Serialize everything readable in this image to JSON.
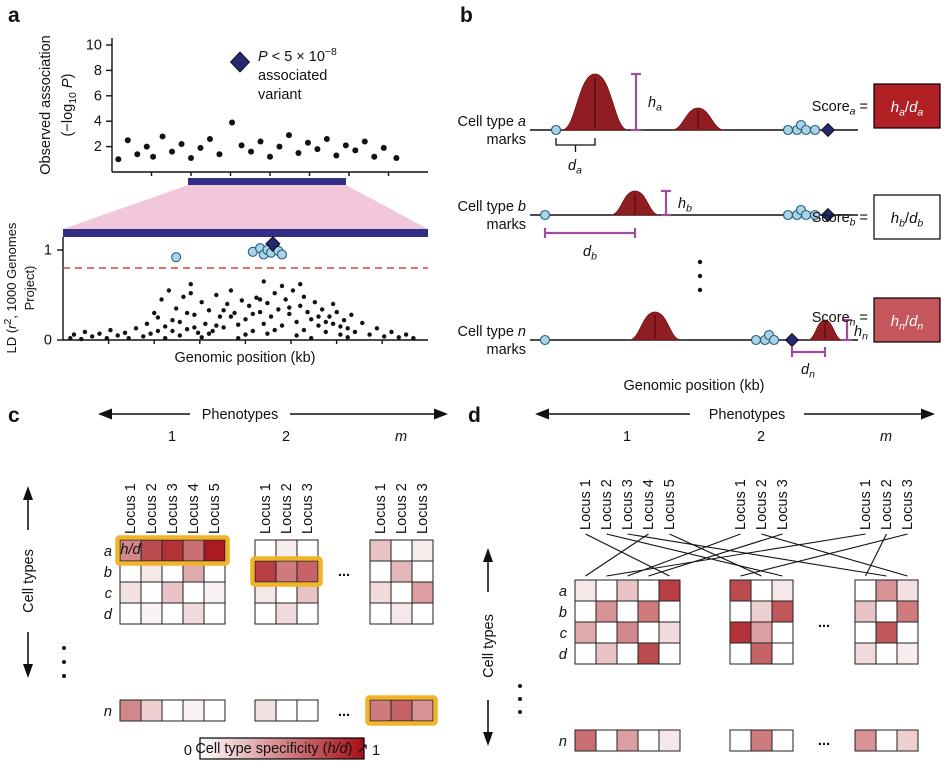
{
  "panels": {
    "a": {
      "label": "a",
      "ylabel1": "Observed association",
      "ylabel2": {
        "pre": "(−log",
        "sub": "10",
        "p": " P",
        "close": ")"
      },
      "legend": {
        "p": "P",
        "mid": " < 5 × 10",
        "exp": "−8",
        "line2": "associated",
        "line3": "variant"
      },
      "ld_ylabel": {
        "pre": "LD (",
        "r": "r",
        "exp": "2",
        "rest": ", 1000 Genomes",
        "line2": "Project)"
      },
      "xlabel": "Genomic position (kb)"
    },
    "b": {
      "label": "b",
      "row_prefix": "Cell type",
      "marks_label": "marks",
      "rows": [
        {
          "letter": "a",
          "label": " a"
        },
        {
          "letter": "b",
          "label": " b"
        },
        {
          "letter": "n",
          "label": " n"
        }
      ],
      "score_word": "Score",
      "eq": " = ",
      "h": "h",
      "d": "d",
      "slash": "/",
      "xlabel": "Genomic position (kb)"
    },
    "c": {
      "label": "c",
      "phenotypes": "Phenotypes",
      "cell_types": "Cell types",
      "group_labels": [
        "1",
        "2",
        "m"
      ],
      "row_labels": [
        "a",
        "b",
        "c",
        "d"
      ],
      "n_label": "n",
      "hd_cell": "h/d",
      "ellipsis": "...",
      "legend_min": "0",
      "legend_max": "1",
      "legend_text": "Cell type specificity (",
      "legend_hd": "h/d",
      "legend_close": ") ",
      "legend_arrow": "↗"
    },
    "d": {
      "label": "d",
      "phenotypes": "Phenotypes",
      "cell_types": "Cell types",
      "group_labels": [
        "1",
        "2",
        "m"
      ],
      "row_labels": [
        "a",
        "b",
        "c",
        "d"
      ],
      "n_label": "n",
      "ellipsis": "..."
    }
  },
  "colors": {
    "navy_bar": "#312e85",
    "diamond_navy": "#28286e",
    "pink_zoom": "#f3c7da",
    "dashed_red": "#e0403a",
    "peak_red": "#8f1d22",
    "high_ld_blue": "#a9d4e8",
    "purple_bracket": "#9c4f9e",
    "yellow_highlight": "#f0b429",
    "score_a_bg": "#b02025",
    "score_b_bg": "#ffffff",
    "score_n_bg": "#c4565c",
    "heat_min": "#ffffff",
    "heat_max": "#a50f15"
  },
  "chart_data": [
    {
      "id": "observed-association",
      "type": "scatter",
      "ylabel": "Observed association (−log10 P)",
      "ylim": [
        0,
        10
      ],
      "yticks": [
        2,
        4,
        6,
        8,
        10
      ],
      "legend": "P < 5 × 10−8 associated variant",
      "points": [
        [
          2,
          1.0
        ],
        [
          5,
          2.5
        ],
        [
          8,
          1.4
        ],
        [
          11,
          2.0
        ],
        [
          13,
          1.2
        ],
        [
          16,
          2.8
        ],
        [
          19,
          1.6
        ],
        [
          22,
          2.2
        ],
        [
          25,
          1.1
        ],
        [
          28,
          1.9
        ],
        [
          31,
          2.6
        ],
        [
          34,
          1.4
        ],
        [
          38,
          3.9
        ],
        [
          41,
          2.1
        ],
        [
          44,
          1.6
        ],
        [
          47,
          2.4
        ],
        [
          50,
          1.2
        ],
        [
          53,
          2.0
        ],
        [
          56,
          2.9
        ],
        [
          59,
          1.5
        ],
        [
          62,
          2.3
        ],
        [
          65,
          1.8
        ],
        [
          68,
          2.6
        ],
        [
          71,
          1.3
        ],
        [
          74,
          2.1
        ],
        [
          77,
          1.7
        ],
        [
          80,
          2.4
        ],
        [
          83,
          1.2
        ],
        [
          86,
          1.9
        ],
        [
          90,
          1.1
        ]
      ]
    },
    {
      "id": "ld-zoom-plot",
      "type": "scatter",
      "xlabel": "Genomic position (kb)",
      "ylabel": "LD (r2, 1000 Genomes Project)",
      "ylim": [
        0,
        1.1
      ],
      "yticks": [
        0,
        1
      ],
      "threshold": 0.8,
      "points_black": [
        [
          2,
          0.02
        ],
        [
          3,
          0.06
        ],
        [
          5,
          0.01
        ],
        [
          6,
          0.09
        ],
        [
          8,
          0.04
        ],
        [
          10,
          0.07
        ],
        [
          12,
          0.02
        ],
        [
          13,
          0.11
        ],
        [
          15,
          0.05
        ],
        [
          17,
          0.08
        ],
        [
          18,
          0.02
        ],
        [
          20,
          0.13
        ],
        [
          22,
          0.04
        ],
        [
          23,
          0.18
        ],
        [
          24,
          0.07
        ],
        [
          25,
          0.3
        ],
        [
          26,
          0.1
        ],
        [
          27,
          0.45
        ],
        [
          28,
          0.15
        ],
        [
          29,
          0.55
        ],
        [
          30,
          0.22
        ],
        [
          31,
          0.35
        ],
        [
          32,
          0.05
        ],
        [
          33,
          0.48
        ],
        [
          34,
          0.12
        ],
        [
          35,
          0.52
        ],
        [
          35,
          0.62
        ],
        [
          36,
          0.28
        ],
        [
          37,
          0.08
        ],
        [
          38,
          0.42
        ],
        [
          39,
          0.18
        ],
        [
          40,
          0.33
        ],
        [
          41,
          0.1
        ],
        [
          42,
          0.5
        ],
        [
          43,
          0.26
        ],
        [
          44,
          0.14
        ],
        [
          45,
          0.4
        ],
        [
          46,
          0.55
        ],
        [
          47,
          0.3
        ],
        [
          48,
          0.17
        ],
        [
          49,
          0.44
        ],
        [
          50,
          0.23
        ],
        [
          51,
          0.38
        ],
        [
          52,
          0.1
        ],
        [
          53,
          0.47
        ],
        [
          54,
          0.31
        ],
        [
          55,
          0.65
        ],
        [
          55,
          0.18
        ],
        [
          56,
          0.41
        ],
        [
          57,
          0.26
        ],
        [
          58,
          0.52
        ],
        [
          59,
          0.34
        ],
        [
          60,
          0.6
        ],
        [
          60,
          0.16
        ],
        [
          61,
          0.45
        ],
        [
          62,
          0.29
        ],
        [
          63,
          0.55
        ],
        [
          64,
          0.2
        ],
        [
          65,
          0.62
        ],
        [
          65,
          0.38
        ],
        [
          66,
          0.11
        ],
        [
          67,
          0.31
        ],
        [
          68,
          0.23
        ],
        [
          69,
          0.42
        ],
        [
          70,
          0.16
        ],
        [
          71,
          0.34
        ],
        [
          72,
          0.09
        ],
        [
          73,
          0.26
        ],
        [
          74,
          0.18
        ],
        [
          75,
          0.31
        ],
        [
          76,
          0.06
        ],
        [
          77,
          0.22
        ],
        [
          78,
          0.13
        ],
        [
          79,
          0.28
        ],
        [
          80,
          0.09
        ],
        [
          82,
          0.19
        ],
        [
          84,
          0.06
        ],
        [
          86,
          0.13
        ],
        [
          88,
          0.04
        ],
        [
          90,
          0.09
        ],
        [
          92,
          0.03
        ],
        [
          94,
          0.06
        ],
        [
          96,
          0.02
        ],
        [
          30,
          0.1
        ],
        [
          34,
          0.3
        ],
        [
          38,
          0.03
        ],
        [
          42,
          0.16
        ],
        [
          46,
          0.26
        ],
        [
          50,
          0.06
        ],
        [
          54,
          0.45
        ],
        [
          58,
          0.11
        ],
        [
          62,
          0.36
        ],
        [
          66,
          0.48
        ],
        [
          70,
          0.26
        ],
        [
          74,
          0.4
        ],
        [
          78,
          0.03
        ],
        [
          26,
          0.25
        ],
        [
          28,
          0.02
        ],
        [
          32,
          0.2
        ],
        [
          36,
          0.14
        ],
        [
          40,
          0.07
        ],
        [
          44,
          0.33
        ],
        [
          48,
          0.02
        ],
        [
          52,
          0.29
        ],
        [
          56,
          0.07
        ],
        [
          64,
          0.05
        ],
        [
          68,
          0.02
        ],
        [
          72,
          0.2
        ],
        [
          76,
          0.15
        ]
      ],
      "points_high_ld": [
        [
          31,
          0.92
        ],
        [
          52,
          0.98
        ],
        [
          54,
          1.02
        ],
        [
          55,
          0.95
        ],
        [
          56,
          1.0
        ],
        [
          57,
          0.97
        ],
        [
          58,
          1.03
        ],
        [
          59,
          0.99
        ],
        [
          60,
          0.95
        ]
      ],
      "lead_variant": [
        57.5,
        1.07
      ]
    },
    {
      "id": "cell-type-specificity-matrix",
      "type": "heatmap",
      "colorscale": {
        "min": 0,
        "max": 1,
        "label": "Cell type specificity (h/d)"
      },
      "row_labels": [
        "a",
        "b",
        "c",
        "d"
      ],
      "extra_row_label": "n",
      "groups": [
        {
          "phenotype": "1",
          "col_labels": [
            "Locus 1",
            "Locus 2",
            "Locus 3",
            "Locus 4",
            "Locus 5"
          ],
          "rows": [
            [
              0.5,
              0.75,
              0.85,
              0.6,
              0.95
            ],
            [
              0,
              0.1,
              0,
              0.35,
              0
            ],
            [
              0.12,
              0,
              0.25,
              0,
              0.05
            ],
            [
              0,
              0.05,
              0,
              0.15,
              0
            ]
          ],
          "n_row": [
            0.5,
            0.2,
            0,
            0.05,
            0
          ]
        },
        {
          "phenotype": "2",
          "col_labels": [
            "Locus 1",
            "Locus 2",
            "Locus 3"
          ],
          "rows": [
            [
              0,
              0.08,
              0
            ],
            [
              0.8,
              0.55,
              0.65
            ],
            [
              0.1,
              0,
              0.25
            ],
            [
              0,
              0.15,
              0
            ]
          ],
          "n_row": [
            0.12,
            0,
            0
          ]
        },
        {
          "phenotype": "m",
          "col_labels": [
            "Locus 1",
            "Locus 2",
            "Locus 3"
          ],
          "rows": [
            [
              0.25,
              0,
              0.08
            ],
            [
              0,
              0.3,
              0
            ],
            [
              0.15,
              0,
              0.4
            ],
            [
              0,
              0.1,
              0
            ]
          ],
          "n_row": [
            0.55,
            0.65,
            0.45
          ]
        }
      ],
      "highlights": [
        {
          "group": 0,
          "row": 0
        },
        {
          "group": 1,
          "row": 1
        },
        {
          "group": 2,
          "row": "n"
        }
      ],
      "annotated_cell": {
        "group": 0,
        "row": 0,
        "col": 0,
        "label": "h/d"
      }
    },
    {
      "id": "shuffled-loci-matrix",
      "type": "heatmap",
      "colorscale": {
        "min": 0,
        "max": 1,
        "label": "Cell type specificity (h/d)"
      },
      "row_labels": [
        "a",
        "b",
        "c",
        "d"
      ],
      "extra_row_label": "n",
      "groups": [
        {
          "phenotype": "1",
          "col_labels": [
            "Locus 1",
            "Locus 2",
            "Locus 3",
            "Locus 4",
            "Locus 5"
          ],
          "rows": [
            [
              0.1,
              0,
              0.25,
              0,
              0.8
            ],
            [
              0,
              0.45,
              0,
              0.55,
              0
            ],
            [
              0.35,
              0,
              0.5,
              0,
              0.15
            ],
            [
              0,
              0.25,
              0,
              0.75,
              0
            ]
          ],
          "n_row": [
            0.6,
            0,
            0.4,
            0,
            0.1
          ]
        },
        {
          "phenotype": "2",
          "col_labels": [
            "Locus 1",
            "Locus 2",
            "Locus 3"
          ],
          "rows": [
            [
              0.75,
              0,
              0.1
            ],
            [
              0,
              0.2,
              0.7
            ],
            [
              0.85,
              0.4,
              0
            ],
            [
              0,
              0.65,
              0
            ]
          ],
          "n_row": [
            0,
            0.55,
            0
          ]
        },
        {
          "phenotype": "m",
          "col_labels": [
            "Locus 1",
            "Locus 2",
            "Locus 3"
          ],
          "rows": [
            [
              0,
              0.45,
              0.12
            ],
            [
              0.25,
              0,
              0.55
            ],
            [
              0,
              0.7,
              0
            ],
            [
              0.15,
              0,
              0.08
            ]
          ],
          "n_row": [
            0.45,
            0,
            0.2
          ]
        }
      ],
      "shuffle_map": [
        4,
        7,
        9,
        0,
        6,
        2,
        10,
        3,
        1,
        8,
        5
      ]
    }
  ]
}
